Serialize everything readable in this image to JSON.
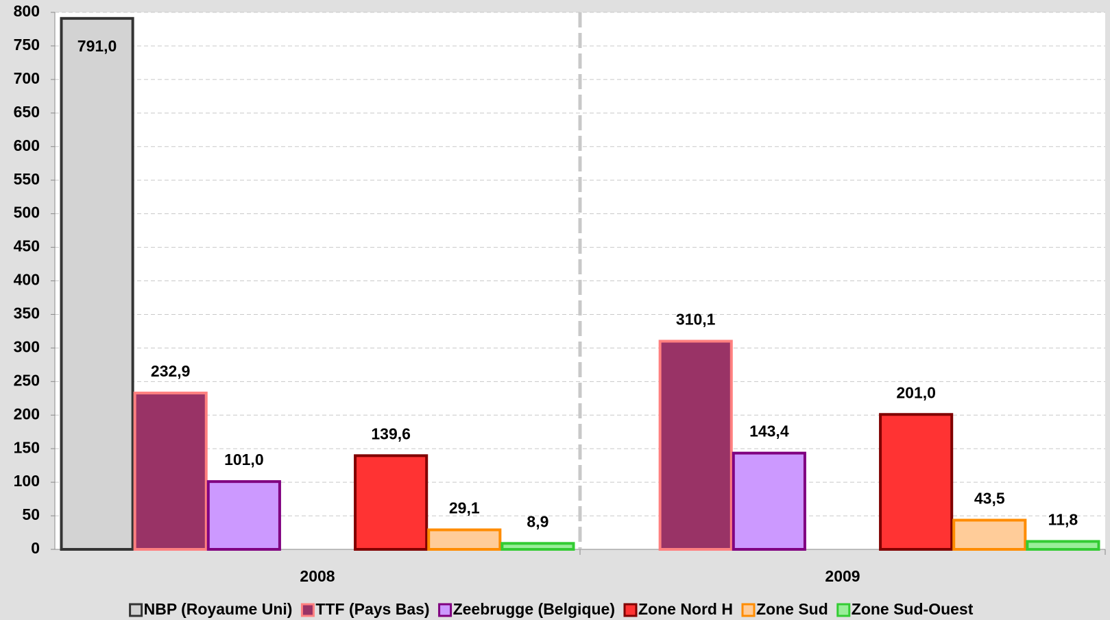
{
  "chart_data": {
    "type": "bar",
    "categories": [
      "2008",
      "2009"
    ],
    "series": [
      {
        "name": "NBP (Royaume Uni)",
        "color": "#d3d3d3",
        "edgecolor": "#333333",
        "values": [
          791.0,
          null
        ],
        "value_labels": [
          "791,0",
          null
        ]
      },
      {
        "name": "TTF (Pays Bas)",
        "color": "#993366",
        "edgecolor": "#ff8080",
        "values": [
          232.9,
          310.1
        ],
        "value_labels": [
          "232,9",
          "310,1"
        ]
      },
      {
        "name": "Zeebrugge (Belgique)",
        "color": "#cc99ff",
        "edgecolor": "#800080",
        "values": [
          101.0,
          143.4
        ],
        "value_labels": [
          "101,0",
          "143,4"
        ]
      },
      {
        "name": "Zone Nord H",
        "color": "#ff3333",
        "edgecolor": "#800000",
        "values": [
          139.6,
          201.0
        ],
        "value_labels": [
          "139,6",
          "201,0"
        ]
      },
      {
        "name": "Zone Sud",
        "color": "#ffcc99",
        "edgecolor": "#ff8c00",
        "values": [
          29.1,
          43.5
        ],
        "value_labels": [
          "29,1",
          "43,5"
        ]
      },
      {
        "name": "Zone Sud-Ouest",
        "color": "#99ee99",
        "edgecolor": "#33cc33",
        "values": [
          8.9,
          11.8
        ],
        "value_labels": [
          "8,9",
          "11,8"
        ]
      }
    ],
    "ylim": [
      0,
      800
    ],
    "yticks": [
      0,
      50,
      100,
      150,
      200,
      250,
      300,
      350,
      400,
      450,
      500,
      550,
      600,
      650,
      700,
      750,
      800
    ],
    "grid": true,
    "legend": "bottom"
  }
}
